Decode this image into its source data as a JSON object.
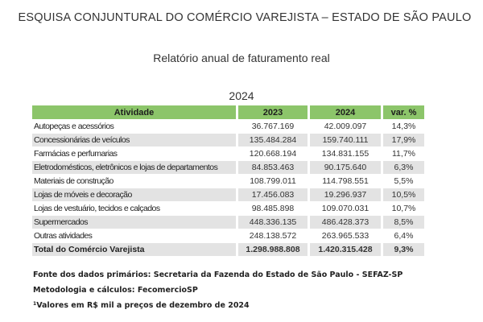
{
  "header": {
    "title": "ESQUISA CONJUNTURAL DO COMÉRCIO VAREJISTA – ESTADO DE SÃO PAULO",
    "subtitle": "Relatório anual de faturamento real",
    "year": "2024"
  },
  "table": {
    "columns": [
      "Atividade",
      "2023",
      "2024",
      "var. %"
    ],
    "rows": [
      {
        "activity": "Autopeças e acessórios",
        "y2023": "36.767.169",
        "y2024": "42.009.097",
        "var": "14,3%"
      },
      {
        "activity": "Concessionárias de veículos",
        "y2023": "135.484.284",
        "y2024": "159.740.111",
        "var": "17,9%"
      },
      {
        "activity": "Farmácias e perfumarias",
        "y2023": "120.668.194",
        "y2024": "134.831.155",
        "var": "11,7%"
      },
      {
        "activity": "Eletrodomésticos, eletrônicos e lojas de departamentos",
        "y2023": "84.853.463",
        "y2024": "90.175.640",
        "var": "6,3%"
      },
      {
        "activity": "Materiais de construção",
        "y2023": "108.799.011",
        "y2024": "114.798.551",
        "var": "5,5%"
      },
      {
        "activity": "Lojas de móveis e decoração",
        "y2023": "17.456.083",
        "y2024": "19.296.937",
        "var": "10,5%"
      },
      {
        "activity": "Lojas de vestuário, tecidos e calçados",
        "y2023": "98.485.898",
        "y2024": "109.070.031",
        "var": "10,7%"
      },
      {
        "activity": "Supermercados",
        "y2023": "448.336.135",
        "y2024": "486.428.373",
        "var": "8,5%"
      },
      {
        "activity": "Outras atividades",
        "y2023": "248.138.572",
        "y2024": "263.965.533",
        "var": "6,4%"
      }
    ],
    "total": {
      "activity": "Total do Comércio Varejista",
      "y2023": "1.298.988.808",
      "y2024": "1.420.315.428",
      "var": "9,3%"
    }
  },
  "footer": {
    "source": "Fonte dos dados primários: Secretaria da Fazenda do Estado de São Paulo - SEFAZ-SP",
    "methodology": "Metodologia e cálculos: FecomercioSP",
    "note_marker": "1",
    "note": "Valores em R$ mil a preços de dezembro de 2024"
  },
  "colors": {
    "header_green": "#8cc56a",
    "row_shade": "#e3e3e3"
  }
}
